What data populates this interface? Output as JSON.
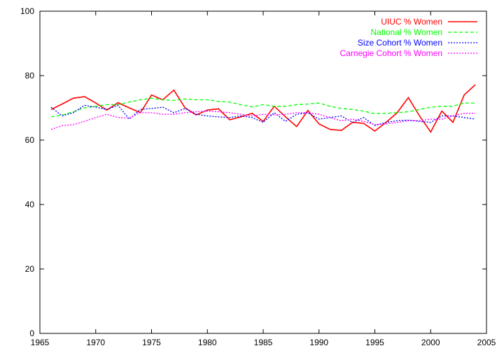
{
  "chart_data": {
    "type": "line",
    "xlim": [
      1965,
      2005
    ],
    "ylim": [
      0,
      100
    ],
    "xticks": [
      1965,
      1970,
      1975,
      1980,
      1985,
      1990,
      1995,
      2000,
      2005
    ],
    "yticks": [
      0,
      20,
      40,
      60,
      80,
      100
    ],
    "grid": false,
    "legend_position": "top-right",
    "x": [
      1966,
      1967,
      1968,
      1969,
      1970,
      1971,
      1972,
      1973,
      1974,
      1975,
      1976,
      1977,
      1978,
      1979,
      1980,
      1981,
      1982,
      1983,
      1984,
      1985,
      1986,
      1987,
      1988,
      1989,
      1990,
      1991,
      1992,
      1993,
      1994,
      1995,
      1996,
      1997,
      1998,
      1999,
      2000,
      2001,
      2002,
      2003,
      2004
    ],
    "series": [
      {
        "name": "UIUC % Women",
        "color": "#ff0000",
        "dash": "solid",
        "values": [
          69.5,
          71.2,
          73.0,
          73.5,
          71.5,
          69.3,
          71.6,
          70.0,
          68.5,
          74.0,
          72.5,
          75.5,
          70.0,
          67.8,
          69.3,
          69.7,
          66.3,
          67.2,
          68.3,
          65.8,
          70.5,
          67.2,
          64.2,
          69.2,
          65.0,
          63.3,
          63.0,
          65.5,
          65.2,
          62.8,
          65.5,
          68.5,
          73.2,
          67.5,
          62.5,
          69.0,
          65.5,
          74.0,
          77.2
        ]
      },
      {
        "name": "National % Women",
        "color": "#00ff00",
        "dash": "dashed",
        "values": [
          67.2,
          67.8,
          68.8,
          70.0,
          70.5,
          71.0,
          71.0,
          71.8,
          72.5,
          73.0,
          72.5,
          72.3,
          72.8,
          72.5,
          72.5,
          72.0,
          71.8,
          71.0,
          70.3,
          71.0,
          70.5,
          70.5,
          71.0,
          71.2,
          71.5,
          70.5,
          69.8,
          69.5,
          69.0,
          68.2,
          68.3,
          68.5,
          68.8,
          69.5,
          70.2,
          70.5,
          70.5,
          71.5,
          71.5
        ]
      },
      {
        "name": "Size Cohort % Women",
        "color": "#0000ff",
        "dash": "dotted",
        "values": [
          70.2,
          67.5,
          68.5,
          70.8,
          70.2,
          69.5,
          70.8,
          66.5,
          69.5,
          69.8,
          70.2,
          68.5,
          69.8,
          68.0,
          67.5,
          67.2,
          67.0,
          67.5,
          67.0,
          65.5,
          68.5,
          65.8,
          68.0,
          68.5,
          66.5,
          67.0,
          67.5,
          65.5,
          67.0,
          64.5,
          65.5,
          66.0,
          66.2,
          65.8,
          65.5,
          67.5,
          67.5,
          67.0,
          66.5
        ]
      },
      {
        "name": "Carnegie Cohort % Women",
        "color": "#ff00ff",
        "dash": "dotted",
        "values": [
          63.3,
          64.5,
          64.8,
          65.8,
          67.0,
          68.0,
          67.0,
          66.8,
          68.5,
          68.5,
          68.0,
          68.0,
          68.5,
          68.8,
          69.0,
          68.8,
          68.5,
          68.0,
          67.5,
          68.0,
          67.8,
          68.0,
          68.5,
          68.5,
          68.0,
          67.0,
          66.0,
          66.5,
          65.8,
          64.8,
          65.0,
          65.5,
          66.0,
          66.0,
          66.5,
          66.5,
          67.5,
          68.3,
          68.3
        ]
      }
    ]
  }
}
